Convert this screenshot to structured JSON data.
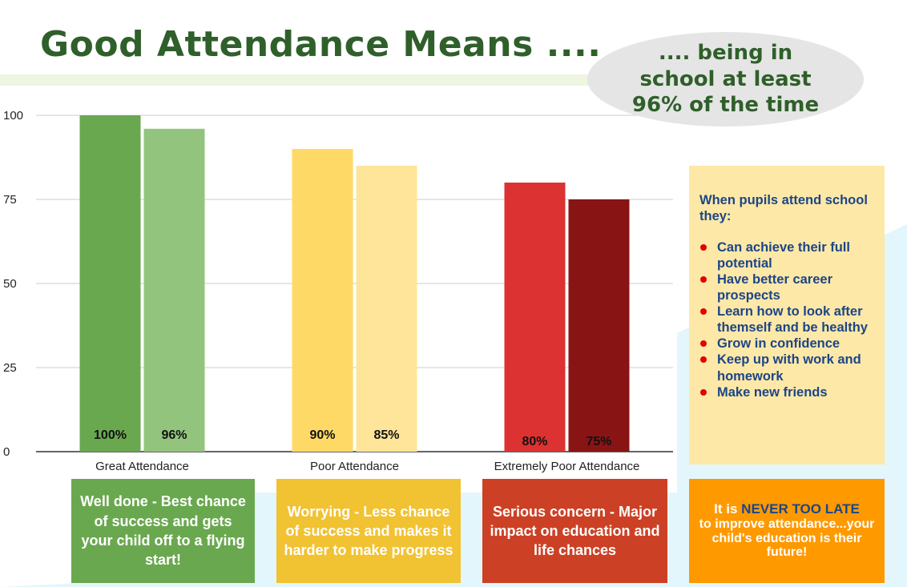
{
  "title": "Good Attendance Means ....",
  "bubble_text": ".... being in school at least 96% of the time",
  "colors": {
    "title": "#2f5f2a",
    "great_dark": "#6aa84f",
    "great_light": "#93c47d",
    "poor_dark": "#ffd966",
    "poor_light": "#ffe599",
    "extreme_dark": "#dc3232",
    "extreme_light": "#891414",
    "info_bg": "#fde8a7",
    "info_text": "#1c4587",
    "bullet": "#e00000"
  },
  "chart_data": {
    "type": "bar",
    "categories": [
      "Great Attendance",
      "Poor Attendance",
      "Extremely Poor Attendance"
    ],
    "bars": [
      {
        "category": "Great Attendance",
        "value": 100,
        "label": "100%",
        "color": "#6aa84f"
      },
      {
        "category": "Great Attendance",
        "value": 96,
        "label": "96%",
        "color": "#93c47d"
      },
      {
        "category": "Poor Attendance",
        "value": 90,
        "label": "90%",
        "color": "#ffd966"
      },
      {
        "category": "Poor Attendance",
        "value": 85,
        "label": "85%",
        "color": "#ffe599"
      },
      {
        "category": "Extremely Poor Attendance",
        "value": 80,
        "label": "80%",
        "color": "#dc3232"
      },
      {
        "category": "Extremely Poor Attendance",
        "value": 75,
        "label": "75%",
        "color": "#891414"
      }
    ],
    "y_ticks": [
      0,
      25,
      50,
      75,
      100
    ],
    "ylim": [
      0,
      100
    ],
    "grid": true,
    "legend": "none"
  },
  "panels": {
    "great": "Well done - Best chance of success and gets your child off to a flying start!",
    "poor": "Worrying - Less chance of success and makes it harder to make progress",
    "extreme": "Serious concern - Major impact on education and life chances",
    "late_lead": "It is ",
    "late_highlight": "NEVER TOO LATE",
    "late_rest": "to improve attendance...your child's education is their future!"
  },
  "info": {
    "heading": "When pupils attend school they:",
    "items": [
      "Can achieve their full potential",
      "Have better career prospects",
      "Learn how to look after themself and be healthy",
      "Grow in confidence",
      "Keep up with work and homework",
      "Make new friends"
    ]
  }
}
